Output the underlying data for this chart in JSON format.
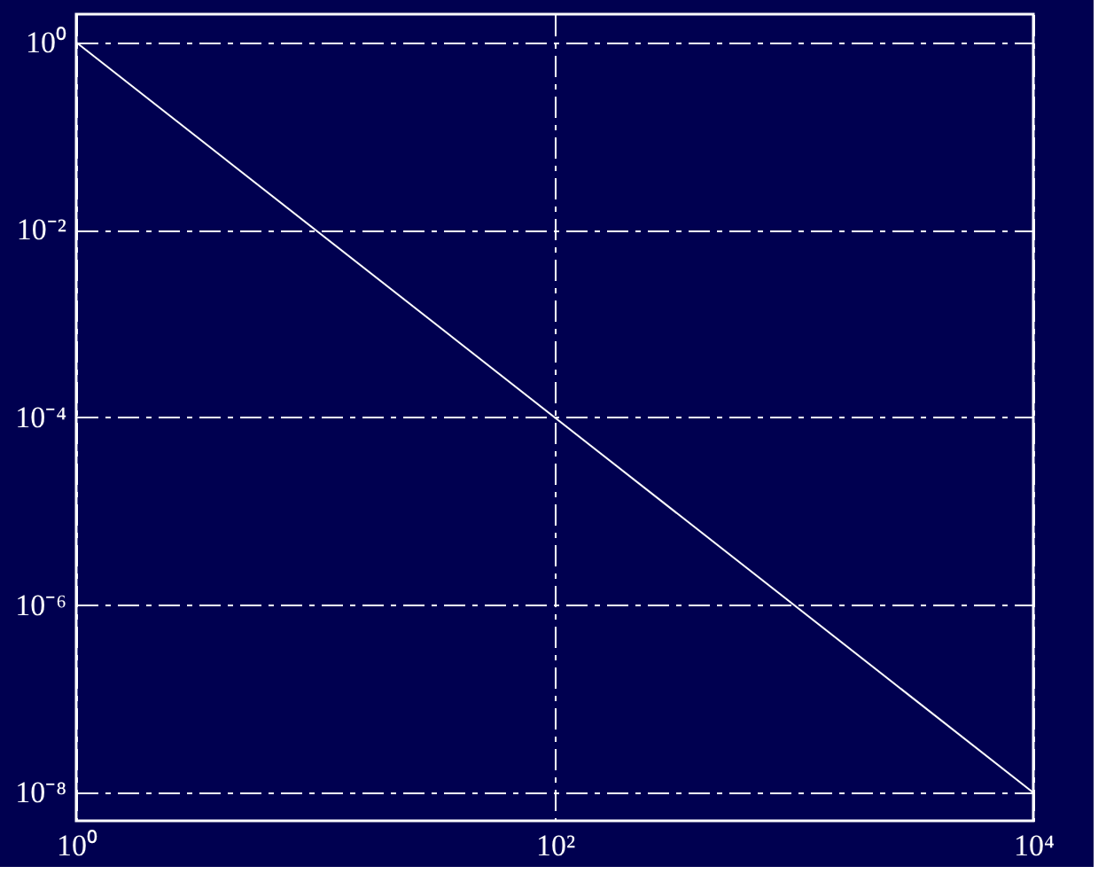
{
  "chart_data": {
    "type": "line",
    "log": "xy",
    "grid": true,
    "line_style": "solid",
    "marker": "none",
    "x": [
      1,
      10000
    ],
    "series": [
      {
        "color": "#ffffff",
        "values": [
          1,
          1e-08
        ]
      }
    ],
    "xlim": [
      1,
      10000
    ],
    "ylim": [
      5e-09,
      2
    ],
    "xticks": [
      {
        "value": 1,
        "label": "10⁰"
      },
      {
        "value": 100,
        "label": "10²"
      },
      {
        "value": 10000,
        "label": "10⁴"
      }
    ],
    "yticks": [
      {
        "value": 1,
        "label": "10⁰"
      },
      {
        "value": 0.01,
        "label": "10⁻²"
      },
      {
        "value": 0.0001,
        "label": "10⁻⁴"
      },
      {
        "value": 1e-06,
        "label": "10⁻⁶"
      },
      {
        "value": 1e-08,
        "label": "10⁻⁸"
      }
    ]
  }
}
